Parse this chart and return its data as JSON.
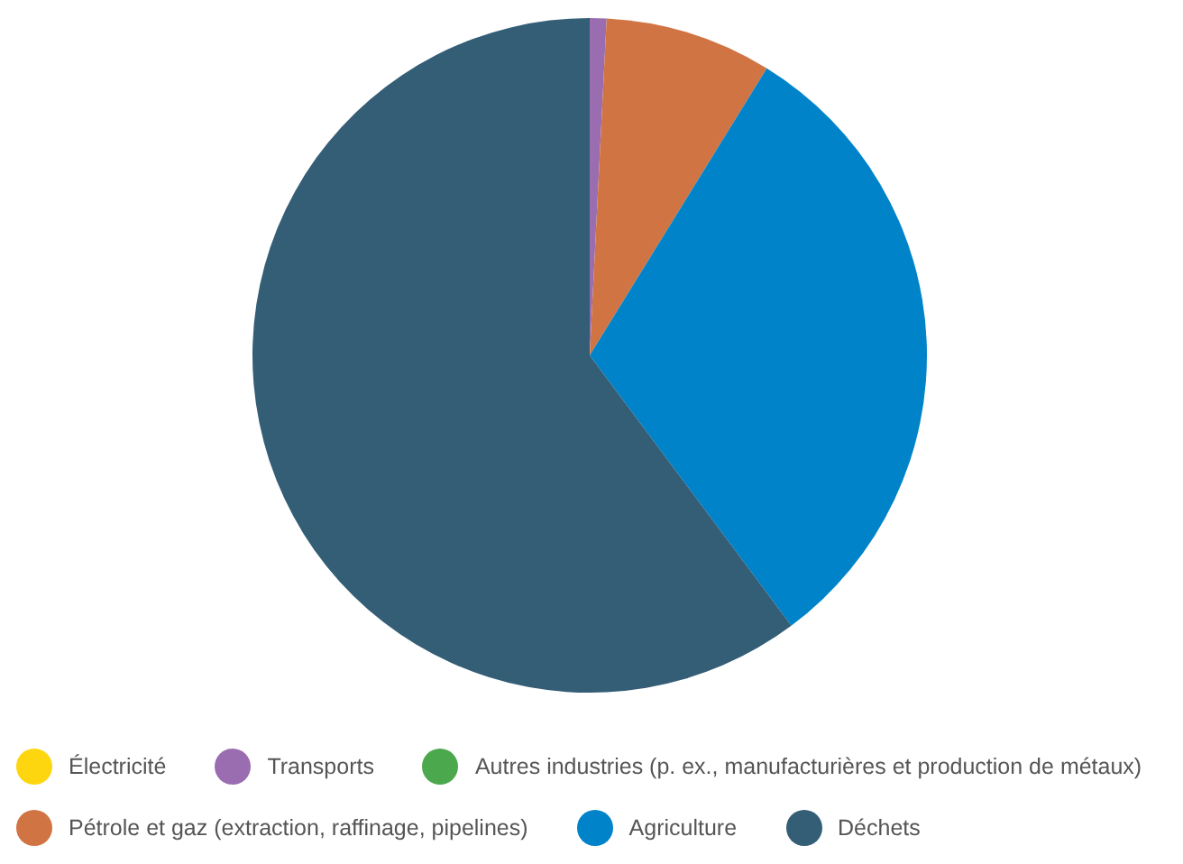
{
  "chart_data": {
    "type": "pie",
    "categories": [
      "Électricité",
      "Transports",
      "Autres industries (p. ex., manufacturières et production de métaux)",
      "Pétrole et gaz (extraction, raffinage, pipelines)",
      "Agriculture",
      "Déchets"
    ],
    "values": [
      0,
      0.8,
      0,
      8.0,
      31.0,
      60.2
    ],
    "colors": [
      "#fed610",
      "#9a6db0",
      "#4ca84c",
      "#d07444",
      "#0083c8",
      "#345d76"
    ],
    "legend": "bottom"
  }
}
